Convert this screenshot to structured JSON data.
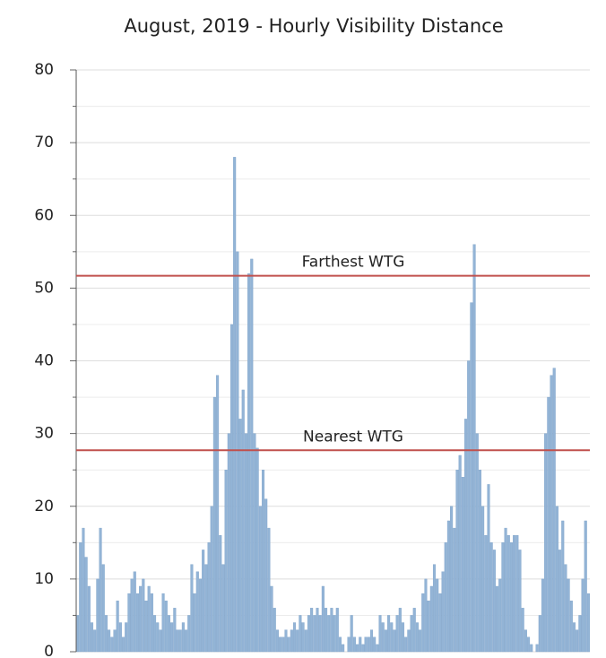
{
  "chart_data": {
    "type": "bar",
    "title": "August, 2019 - Hourly Visibility Distance",
    "values": [
      5,
      15,
      17,
      13,
      9,
      4,
      3,
      10,
      17,
      12,
      5,
      3,
      2,
      3,
      7,
      4,
      2,
      4,
      8,
      10,
      11,
      8,
      9,
      10,
      7,
      9,
      8,
      5,
      4,
      3,
      8,
      7,
      5,
      4,
      6,
      3,
      3,
      4,
      3,
      5,
      12,
      8,
      11,
      10,
      14,
      12,
      15,
      20,
      35,
      38,
      16,
      12,
      25,
      30,
      45,
      68,
      55,
      32,
      36,
      30,
      52,
      54,
      30,
      28,
      20,
      25,
      21,
      17,
      9,
      6,
      3,
      2,
      2,
      3,
      2,
      3,
      4,
      3,
      5,
      4,
      3,
      5,
      6,
      5,
      6,
      5,
      9,
      6,
      5,
      6,
      5,
      6,
      2,
      1,
      0,
      2,
      5,
      2,
      1,
      2,
      1,
      2,
      2,
      3,
      2,
      1,
      5,
      4,
      3,
      5,
      4,
      3,
      5,
      6,
      4,
      2,
      3,
      5,
      6,
      4,
      3,
      8,
      10,
      7,
      9,
      12,
      10,
      8,
      11,
      15,
      18,
      20,
      17,
      25,
      27,
      24,
      32,
      40,
      48,
      56,
      30,
      25,
      20,
      16,
      23,
      15,
      14,
      9,
      10,
      15,
      17,
      16,
      15,
      16,
      16,
      14,
      6,
      3,
      2,
      1,
      0,
      1,
      5,
      10,
      30,
      35,
      38,
      39,
      20,
      14,
      18,
      12,
      10,
      7,
      4,
      3,
      5,
      10,
      18,
      8
    ],
    "color": "#93b4d6",
    "ylim": [
      0,
      80
    ],
    "yticks": [
      0,
      10,
      20,
      30,
      40,
      50,
      60,
      70,
      80
    ],
    "yminorticks": [
      5,
      15,
      25,
      35,
      45,
      55,
      65,
      75
    ],
    "grid": true,
    "reference_lines": [
      {
        "label": "Farthest WTG",
        "value": 51.7,
        "color": "#c0504d"
      },
      {
        "label": "Nearest WTG",
        "value": 27.7,
        "color": "#c0504d"
      }
    ]
  }
}
